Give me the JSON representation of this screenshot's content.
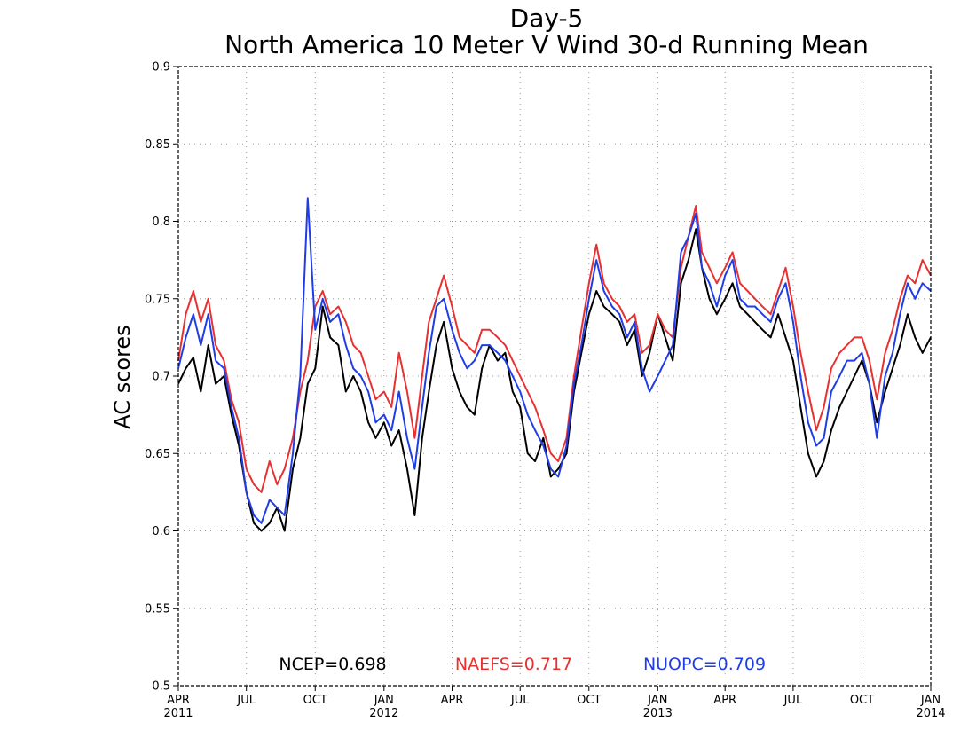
{
  "chart_data": {
    "type": "line",
    "title": "Day-5",
    "subtitle": "North America 10 Meter V Wind 30-d Running Mean",
    "ylabel": "AC scores",
    "xlabel": "",
    "ylim": [
      0.5,
      0.9
    ],
    "yticks": [
      0.5,
      0.55,
      0.6,
      0.65,
      0.7,
      0.75,
      0.8,
      0.85,
      0.9
    ],
    "ytick_labels": [
      "0.5",
      "0.55",
      "0.6",
      "0.65",
      "0.7",
      "0.75",
      "0.8",
      "0.85",
      "0.9"
    ],
    "xlim": [
      "2011-04-01",
      "2014-01-01"
    ],
    "xticks": [
      {
        "date": "2011-04-01",
        "label": "APR",
        "year": "2011"
      },
      {
        "date": "2011-07-01",
        "label": "JUL",
        "year": ""
      },
      {
        "date": "2011-10-01",
        "label": "OCT",
        "year": ""
      },
      {
        "date": "2012-01-01",
        "label": "JAN",
        "year": "2012"
      },
      {
        "date": "2012-04-01",
        "label": "APR",
        "year": ""
      },
      {
        "date": "2012-07-01",
        "label": "JUL",
        "year": ""
      },
      {
        "date": "2012-10-01",
        "label": "OCT",
        "year": ""
      },
      {
        "date": "2013-01-01",
        "label": "JAN",
        "year": "2013"
      },
      {
        "date": "2013-04-01",
        "label": "APR",
        "year": ""
      },
      {
        "date": "2013-07-01",
        "label": "JUL",
        "year": ""
      },
      {
        "date": "2013-10-01",
        "label": "OCT",
        "year": ""
      },
      {
        "date": "2014-01-01",
        "label": "JAN",
        "year": "2014"
      }
    ],
    "grid": true,
    "legend": "bottom-center",
    "stats": [
      {
        "text": "NCEP=0.698",
        "color": "#000000"
      },
      {
        "text": "NAEFS=0.717",
        "color": "#e83030"
      },
      {
        "text": "NUOPC=0.709",
        "color": "#1f3de6"
      }
    ],
    "series": [
      {
        "name": "NCEP",
        "color": "#000000",
        "x": [
          "2011-04-01",
          "2011-04-11",
          "2011-04-21",
          "2011-05-01",
          "2011-05-11",
          "2011-05-21",
          "2011-06-01",
          "2011-06-11",
          "2011-06-21",
          "2011-07-01",
          "2011-07-11",
          "2011-07-21",
          "2011-08-01",
          "2011-08-11",
          "2011-08-21",
          "2011-09-01",
          "2011-09-11",
          "2011-09-21",
          "2011-10-01",
          "2011-10-11",
          "2011-10-21",
          "2011-11-01",
          "2011-11-11",
          "2011-11-21",
          "2011-12-01",
          "2011-12-11",
          "2011-12-21",
          "2012-01-01",
          "2012-01-11",
          "2012-01-21",
          "2012-02-01",
          "2012-02-11",
          "2012-02-21",
          "2012-03-01",
          "2012-03-11",
          "2012-03-21",
          "2012-04-01",
          "2012-04-11",
          "2012-04-21",
          "2012-05-01",
          "2012-05-11",
          "2012-05-21",
          "2012-06-01",
          "2012-06-11",
          "2012-06-21",
          "2012-07-01",
          "2012-07-11",
          "2012-07-21",
          "2012-08-01",
          "2012-08-11",
          "2012-08-21",
          "2012-09-01",
          "2012-09-11",
          "2012-09-21",
          "2012-10-01",
          "2012-10-11",
          "2012-10-21",
          "2012-11-01",
          "2012-11-11",
          "2012-11-21",
          "2012-12-01",
          "2012-12-11",
          "2012-12-21",
          "2013-01-01",
          "2013-01-11",
          "2013-01-21",
          "2013-02-01",
          "2013-02-11",
          "2013-02-21",
          "2013-03-01",
          "2013-03-11",
          "2013-03-21",
          "2013-04-01",
          "2013-04-11",
          "2013-04-21",
          "2013-05-01",
          "2013-05-11",
          "2013-05-21",
          "2013-06-01",
          "2013-06-11",
          "2013-06-21",
          "2013-07-01",
          "2013-07-11",
          "2013-07-21",
          "2013-08-01",
          "2013-08-11",
          "2013-08-21",
          "2013-09-01",
          "2013-09-11",
          "2013-09-21",
          "2013-10-01",
          "2013-10-11",
          "2013-10-21",
          "2013-11-01",
          "2013-11-11",
          "2013-11-21",
          "2013-12-01",
          "2013-12-11",
          "2013-12-21",
          "2014-01-01"
        ],
        "values": [
          0.695,
          0.705,
          0.712,
          0.69,
          0.72,
          0.695,
          0.7,
          0.675,
          0.655,
          0.625,
          0.605,
          0.6,
          0.605,
          0.615,
          0.6,
          0.64,
          0.66,
          0.695,
          0.705,
          0.745,
          0.725,
          0.72,
          0.69,
          0.7,
          0.69,
          0.67,
          0.66,
          0.67,
          0.655,
          0.665,
          0.64,
          0.61,
          0.66,
          0.69,
          0.72,
          0.735,
          0.705,
          0.69,
          0.68,
          0.675,
          0.705,
          0.72,
          0.71,
          0.715,
          0.69,
          0.68,
          0.65,
          0.645,
          0.66,
          0.635,
          0.64,
          0.65,
          0.69,
          0.715,
          0.74,
          0.755,
          0.745,
          0.74,
          0.735,
          0.72,
          0.73,
          0.7,
          0.715,
          0.74,
          0.725,
          0.71,
          0.76,
          0.775,
          0.795,
          0.77,
          0.75,
          0.74,
          0.75,
          0.76,
          0.745,
          0.74,
          0.735,
          0.73,
          0.725,
          0.74,
          0.725,
          0.71,
          0.68,
          0.65,
          0.635,
          0.645,
          0.665,
          0.68,
          0.69,
          0.7,
          0.71,
          0.695,
          0.67,
          0.69,
          0.705,
          0.72,
          0.74,
          0.725,
          0.715,
          0.725
        ]
      },
      {
        "name": "NAEFS",
        "color": "#e83030",
        "x": [
          "2011-04-01",
          "2011-04-11",
          "2011-04-21",
          "2011-05-01",
          "2011-05-11",
          "2011-05-21",
          "2011-06-01",
          "2011-06-11",
          "2011-06-21",
          "2011-07-01",
          "2011-07-11",
          "2011-07-21",
          "2011-08-01",
          "2011-08-11",
          "2011-08-21",
          "2011-09-01",
          "2011-09-11",
          "2011-09-21",
          "2011-10-01",
          "2011-10-11",
          "2011-10-21",
          "2011-11-01",
          "2011-11-11",
          "2011-11-21",
          "2011-12-01",
          "2011-12-11",
          "2011-12-21",
          "2012-01-01",
          "2012-01-11",
          "2012-01-21",
          "2012-02-01",
          "2012-02-11",
          "2012-02-21",
          "2012-03-01",
          "2012-03-11",
          "2012-03-21",
          "2012-04-01",
          "2012-04-11",
          "2012-04-21",
          "2012-05-01",
          "2012-05-11",
          "2012-05-21",
          "2012-06-01",
          "2012-06-11",
          "2012-06-21",
          "2012-07-01",
          "2012-07-11",
          "2012-07-21",
          "2012-08-01",
          "2012-08-11",
          "2012-08-21",
          "2012-09-01",
          "2012-09-11",
          "2012-09-21",
          "2012-10-01",
          "2012-10-11",
          "2012-10-21",
          "2012-11-01",
          "2012-11-11",
          "2012-11-21",
          "2012-12-01",
          "2012-12-11",
          "2012-12-21",
          "2013-01-01",
          "2013-01-11",
          "2013-01-21",
          "2013-02-01",
          "2013-02-11",
          "2013-02-21",
          "2013-03-01",
          "2013-03-11",
          "2013-03-21",
          "2013-04-01",
          "2013-04-11",
          "2013-04-21",
          "2013-05-01",
          "2013-05-11",
          "2013-05-21",
          "2013-06-01",
          "2013-06-11",
          "2013-06-21",
          "2013-07-01",
          "2013-07-11",
          "2013-07-21",
          "2013-08-01",
          "2013-08-11",
          "2013-08-21",
          "2013-09-01",
          "2013-09-11",
          "2013-09-21",
          "2013-10-01",
          "2013-10-11",
          "2013-10-21",
          "2013-11-01",
          "2013-11-11",
          "2013-11-21",
          "2013-12-01",
          "2013-12-11",
          "2013-12-21",
          "2014-01-01"
        ],
        "values": [
          0.71,
          0.74,
          0.755,
          0.735,
          0.75,
          0.72,
          0.71,
          0.685,
          0.67,
          0.64,
          0.63,
          0.625,
          0.645,
          0.63,
          0.64,
          0.66,
          0.69,
          0.71,
          0.745,
          0.755,
          0.74,
          0.745,
          0.735,
          0.72,
          0.715,
          0.7,
          0.685,
          0.69,
          0.68,
          0.715,
          0.69,
          0.66,
          0.7,
          0.735,
          0.75,
          0.765,
          0.745,
          0.725,
          0.72,
          0.715,
          0.73,
          0.73,
          0.725,
          0.72,
          0.71,
          0.7,
          0.69,
          0.68,
          0.665,
          0.65,
          0.645,
          0.66,
          0.7,
          0.73,
          0.76,
          0.785,
          0.76,
          0.75,
          0.745,
          0.735,
          0.74,
          0.715,
          0.72,
          0.74,
          0.73,
          0.725,
          0.77,
          0.79,
          0.81,
          0.78,
          0.77,
          0.76,
          0.77,
          0.78,
          0.76,
          0.755,
          0.75,
          0.745,
          0.74,
          0.755,
          0.77,
          0.745,
          0.715,
          0.69,
          0.665,
          0.68,
          0.705,
          0.715,
          0.72,
          0.725,
          0.725,
          0.71,
          0.685,
          0.715,
          0.73,
          0.75,
          0.765,
          0.76,
          0.775,
          0.765
        ]
      },
      {
        "name": "NUOPC",
        "color": "#1f3de6",
        "x": [
          "2011-04-01",
          "2011-04-11",
          "2011-04-21",
          "2011-05-01",
          "2011-05-11",
          "2011-05-21",
          "2011-06-01",
          "2011-06-11",
          "2011-06-21",
          "2011-07-01",
          "2011-07-11",
          "2011-07-21",
          "2011-08-01",
          "2011-08-11",
          "2011-08-21",
          "2011-09-01",
          "2011-09-11",
          "2011-09-21",
          "2011-10-01",
          "2011-10-11",
          "2011-10-21",
          "2011-11-01",
          "2011-11-11",
          "2011-11-21",
          "2011-12-01",
          "2011-12-11",
          "2011-12-21",
          "2012-01-01",
          "2012-01-11",
          "2012-01-21",
          "2012-02-01",
          "2012-02-11",
          "2012-02-21",
          "2012-03-01",
          "2012-03-11",
          "2012-03-21",
          "2012-04-01",
          "2012-04-11",
          "2012-04-21",
          "2012-05-01",
          "2012-05-11",
          "2012-05-21",
          "2012-06-01",
          "2012-06-11",
          "2012-06-21",
          "2012-07-01",
          "2012-07-11",
          "2012-07-21",
          "2012-08-01",
          "2012-08-11",
          "2012-08-21",
          "2012-09-01",
          "2012-09-11",
          "2012-09-21",
          "2012-10-01",
          "2012-10-11",
          "2012-10-21",
          "2012-11-01",
          "2012-11-11",
          "2012-11-21",
          "2012-12-01",
          "2012-12-11",
          "2012-12-21",
          "2013-01-01",
          "2013-01-11",
          "2013-01-21",
          "2013-02-01",
          "2013-02-11",
          "2013-02-21",
          "2013-03-01",
          "2013-03-11",
          "2013-03-21",
          "2013-04-01",
          "2013-04-11",
          "2013-04-21",
          "2013-05-01",
          "2013-05-11",
          "2013-05-21",
          "2013-06-01",
          "2013-06-11",
          "2013-06-21",
          "2013-07-01",
          "2013-07-11",
          "2013-07-21",
          "2013-08-01",
          "2013-08-11",
          "2013-08-21",
          "2013-09-01",
          "2013-09-11",
          "2013-09-21",
          "2013-10-01",
          "2013-10-11",
          "2013-10-21",
          "2013-11-01",
          "2013-11-11",
          "2013-11-21",
          "2013-12-01",
          "2013-12-11",
          "2013-12-21",
          "2014-01-01"
        ],
        "values": [
          0.705,
          0.725,
          0.74,
          0.72,
          0.74,
          0.71,
          0.705,
          0.68,
          0.66,
          0.625,
          0.61,
          0.605,
          0.62,
          0.615,
          0.61,
          0.65,
          0.7,
          0.815,
          0.73,
          0.75,
          0.735,
          0.74,
          0.72,
          0.705,
          0.7,
          0.69,
          0.67,
          0.675,
          0.665,
          0.69,
          0.66,
          0.64,
          0.68,
          0.715,
          0.745,
          0.75,
          0.73,
          0.715,
          0.705,
          0.71,
          0.72,
          0.72,
          0.715,
          0.71,
          0.7,
          0.69,
          0.675,
          0.665,
          0.655,
          0.64,
          0.635,
          0.655,
          0.695,
          0.72,
          0.75,
          0.775,
          0.755,
          0.745,
          0.74,
          0.725,
          0.735,
          0.705,
          0.69,
          0.7,
          0.71,
          0.72,
          0.78,
          0.79,
          0.805,
          0.77,
          0.76,
          0.745,
          0.765,
          0.775,
          0.75,
          0.745,
          0.745,
          0.74,
          0.735,
          0.75,
          0.76,
          0.735,
          0.7,
          0.67,
          0.655,
          0.66,
          0.69,
          0.7,
          0.71,
          0.71,
          0.715,
          0.695,
          0.66,
          0.7,
          0.715,
          0.74,
          0.76,
          0.75,
          0.76,
          0.755
        ]
      }
    ]
  }
}
